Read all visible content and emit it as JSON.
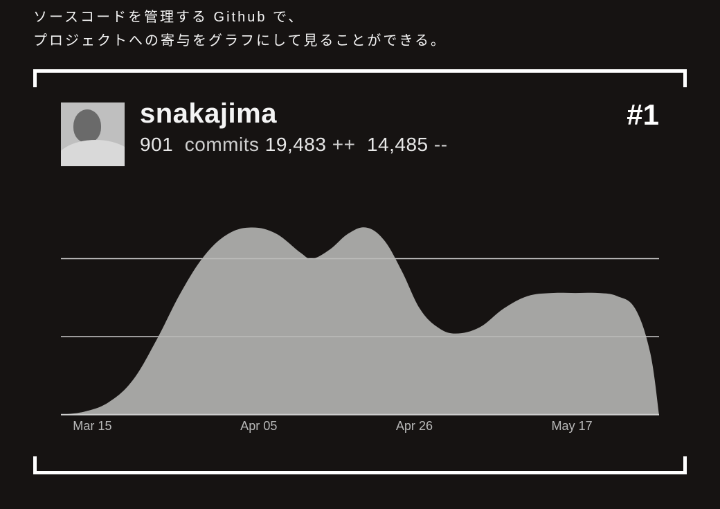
{
  "intro": {
    "line1": "ソースコードを管理する Github で、",
    "line2": "プロジェクトへの寄与をグラフにして見ることができる。"
  },
  "contributor": {
    "username": "snakajima",
    "rank": "#1",
    "commits": "901",
    "commits_label": "commits",
    "additions": "19,483",
    "additions_suffix": "++",
    "deletions": "14,485",
    "deletions_suffix": "--"
  },
  "chart": {
    "type": "area",
    "fill_color": "#b9b9b7",
    "fill_opacity": 0.88,
    "grid_color": "#d0d0d0",
    "baseline_color": "#cfcfcf",
    "background_color": "#161312",
    "label_color": "#b8b8b8",
    "label_fontsize": 18,
    "y_gridlines": [
      50,
      100
    ],
    "ylim": [
      0,
      130
    ],
    "x_ticks": [
      {
        "pos": 0.02,
        "label": "Mar 15"
      },
      {
        "pos": 0.3,
        "label": "Apr 05"
      },
      {
        "pos": 0.56,
        "label": "Apr 26"
      },
      {
        "pos": 0.82,
        "label": "May 17"
      }
    ],
    "series": [
      {
        "x": 0.0,
        "y": 0
      },
      {
        "x": 0.04,
        "y": 2
      },
      {
        "x": 0.08,
        "y": 8
      },
      {
        "x": 0.12,
        "y": 22
      },
      {
        "x": 0.16,
        "y": 48
      },
      {
        "x": 0.2,
        "y": 78
      },
      {
        "x": 0.24,
        "y": 102
      },
      {
        "x": 0.28,
        "y": 116
      },
      {
        "x": 0.32,
        "y": 120
      },
      {
        "x": 0.36,
        "y": 116
      },
      {
        "x": 0.4,
        "y": 104
      },
      {
        "x": 0.42,
        "y": 100
      },
      {
        "x": 0.45,
        "y": 106
      },
      {
        "x": 0.48,
        "y": 116
      },
      {
        "x": 0.51,
        "y": 120
      },
      {
        "x": 0.54,
        "y": 112
      },
      {
        "x": 0.57,
        "y": 92
      },
      {
        "x": 0.6,
        "y": 68
      },
      {
        "x": 0.63,
        "y": 56
      },
      {
        "x": 0.66,
        "y": 52
      },
      {
        "x": 0.7,
        "y": 56
      },
      {
        "x": 0.74,
        "y": 68
      },
      {
        "x": 0.78,
        "y": 76
      },
      {
        "x": 0.82,
        "y": 78
      },
      {
        "x": 0.86,
        "y": 78
      },
      {
        "x": 0.9,
        "y": 78
      },
      {
        "x": 0.93,
        "y": 76
      },
      {
        "x": 0.96,
        "y": 68
      },
      {
        "x": 0.985,
        "y": 40
      },
      {
        "x": 1.0,
        "y": 0
      }
    ]
  }
}
